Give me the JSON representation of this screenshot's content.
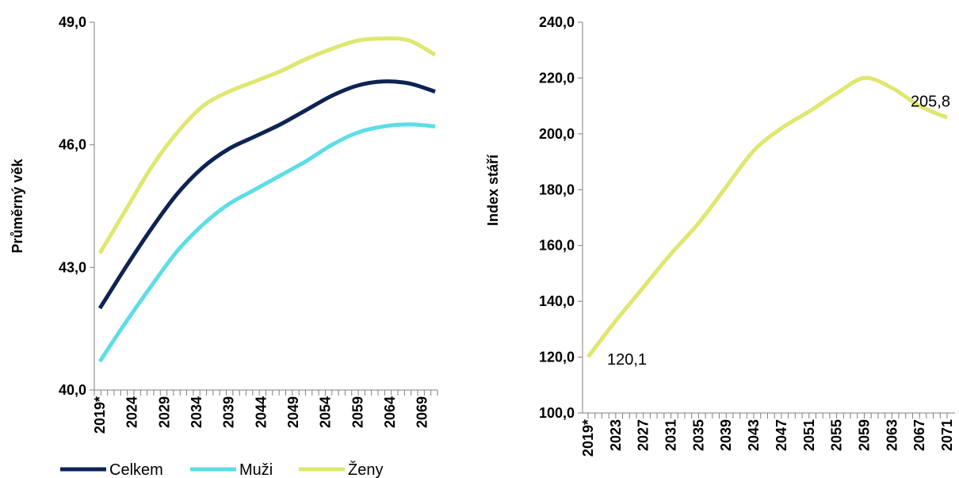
{
  "colors": {
    "celkem": "#0d2353",
    "muzi": "#5ddde6",
    "zeny": "#dfe76e",
    "axis": "#7f7f7f"
  },
  "chart_data": [
    {
      "type": "line",
      "ylabel": "Průměrný věk",
      "ylim": [
        40.0,
        49.0
      ],
      "yticks": [
        "40,0",
        "43,0",
        "46,0",
        "49,0"
      ],
      "xtick_labels": [
        "2019*",
        "2024",
        "2029",
        "2034",
        "2039",
        "2044",
        "2049",
        "2054",
        "2059",
        "2064",
        "2069"
      ],
      "x": [
        2019,
        2023,
        2027,
        2031,
        2035,
        2039,
        2043,
        2047,
        2051,
        2055,
        2059,
        2063,
        2067,
        2071
      ],
      "series": [
        {
          "name": "Celkem",
          "color": "#0d2353",
          "values": [
            42.0,
            43.0,
            43.95,
            44.8,
            45.45,
            45.9,
            46.2,
            46.5,
            46.85,
            47.2,
            47.45,
            47.55,
            47.5,
            47.3
          ]
        },
        {
          "name": "Muži",
          "color": "#5ddde6",
          "values": [
            40.7,
            41.65,
            42.55,
            43.4,
            44.05,
            44.55,
            44.9,
            45.25,
            45.6,
            46.0,
            46.3,
            46.45,
            46.5,
            46.45
          ]
        },
        {
          "name": "Ženy",
          "color": "#dfe76e",
          "values": [
            43.35,
            44.4,
            45.45,
            46.3,
            46.95,
            47.3,
            47.55,
            47.8,
            48.1,
            48.35,
            48.55,
            48.6,
            48.55,
            48.2
          ]
        }
      ],
      "legend": {
        "position": "bottom",
        "items": [
          "Celkem",
          "Muži",
          "Ženy"
        ]
      }
    },
    {
      "type": "line",
      "ylabel": "Index stáří",
      "ylim": [
        100.0,
        240.0
      ],
      "yticks": [
        "100,0",
        "120,0",
        "140,0",
        "160,0",
        "180,0",
        "200,0",
        "220,0",
        "240,0"
      ],
      "xtick_labels": [
        "2019*",
        "2023",
        "2027",
        "2031",
        "2035",
        "2039",
        "2043",
        "2047",
        "2051",
        "2055",
        "2059",
        "2063",
        "2067",
        "2071"
      ],
      "x": [
        2019,
        2023,
        2027,
        2031,
        2035,
        2039,
        2043,
        2047,
        2051,
        2055,
        2059,
        2063,
        2067,
        2071
      ],
      "series": [
        {
          "color": "#dfe76e",
          "values": [
            120.1,
            133.0,
            145.0,
            157.0,
            168.0,
            181.0,
            194.0,
            202.0,
            208.0,
            214.5,
            220.0,
            216.5,
            210.0,
            205.8
          ]
        }
      ],
      "annotations": [
        {
          "x": 2019,
          "y": 120.1,
          "text": "120,1"
        },
        {
          "x": 2071,
          "y": 205.8,
          "text": "205,8"
        }
      ]
    }
  ]
}
